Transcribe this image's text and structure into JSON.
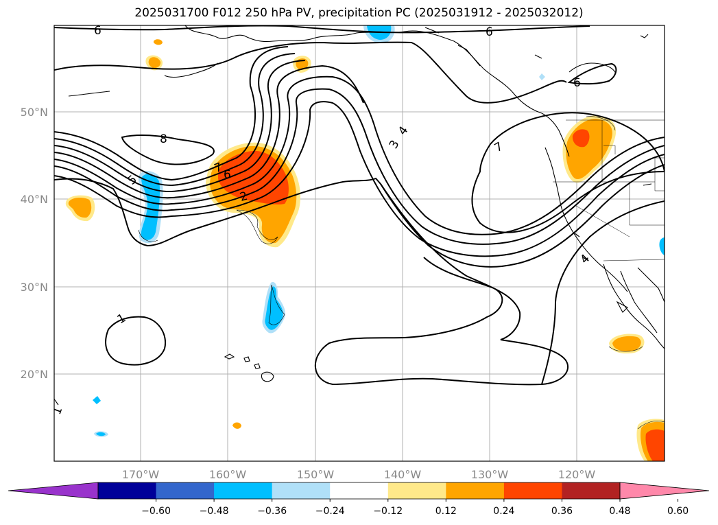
{
  "title": "2025031700 F012 250 hPa PV, precipitation PC (2025031912 - 2025032012)",
  "map": {
    "lon_labels": [
      "170°W",
      "160°W",
      "150°W",
      "140°W",
      "130°W",
      "120°W"
    ],
    "lat_labels": [
      "50°N",
      "40°N",
      "30°N",
      "20°N"
    ],
    "gridlines": true,
    "coastlines": true,
    "pv_contour_labels": [
      "6",
      "6",
      "6",
      "8",
      "5",
      "7",
      "6",
      "2",
      "4",
      "3",
      "7",
      "4",
      "1",
      "1"
    ]
  },
  "colorbar": {
    "ticks": [
      "−0.60",
      "−0.48",
      "−0.36",
      "−0.24",
      "−0.12",
      "0.12",
      "0.24",
      "0.36",
      "0.48",
      "0.60"
    ],
    "colors": [
      "#9933cc",
      "#000099",
      "#3366cc",
      "#00bfff",
      "#b0e0f8",
      "#ffffff",
      "#ffe98a",
      "#ffa500",
      "#ff4500",
      "#b22222",
      "#ff88aa"
    ],
    "extend": "both"
  }
}
